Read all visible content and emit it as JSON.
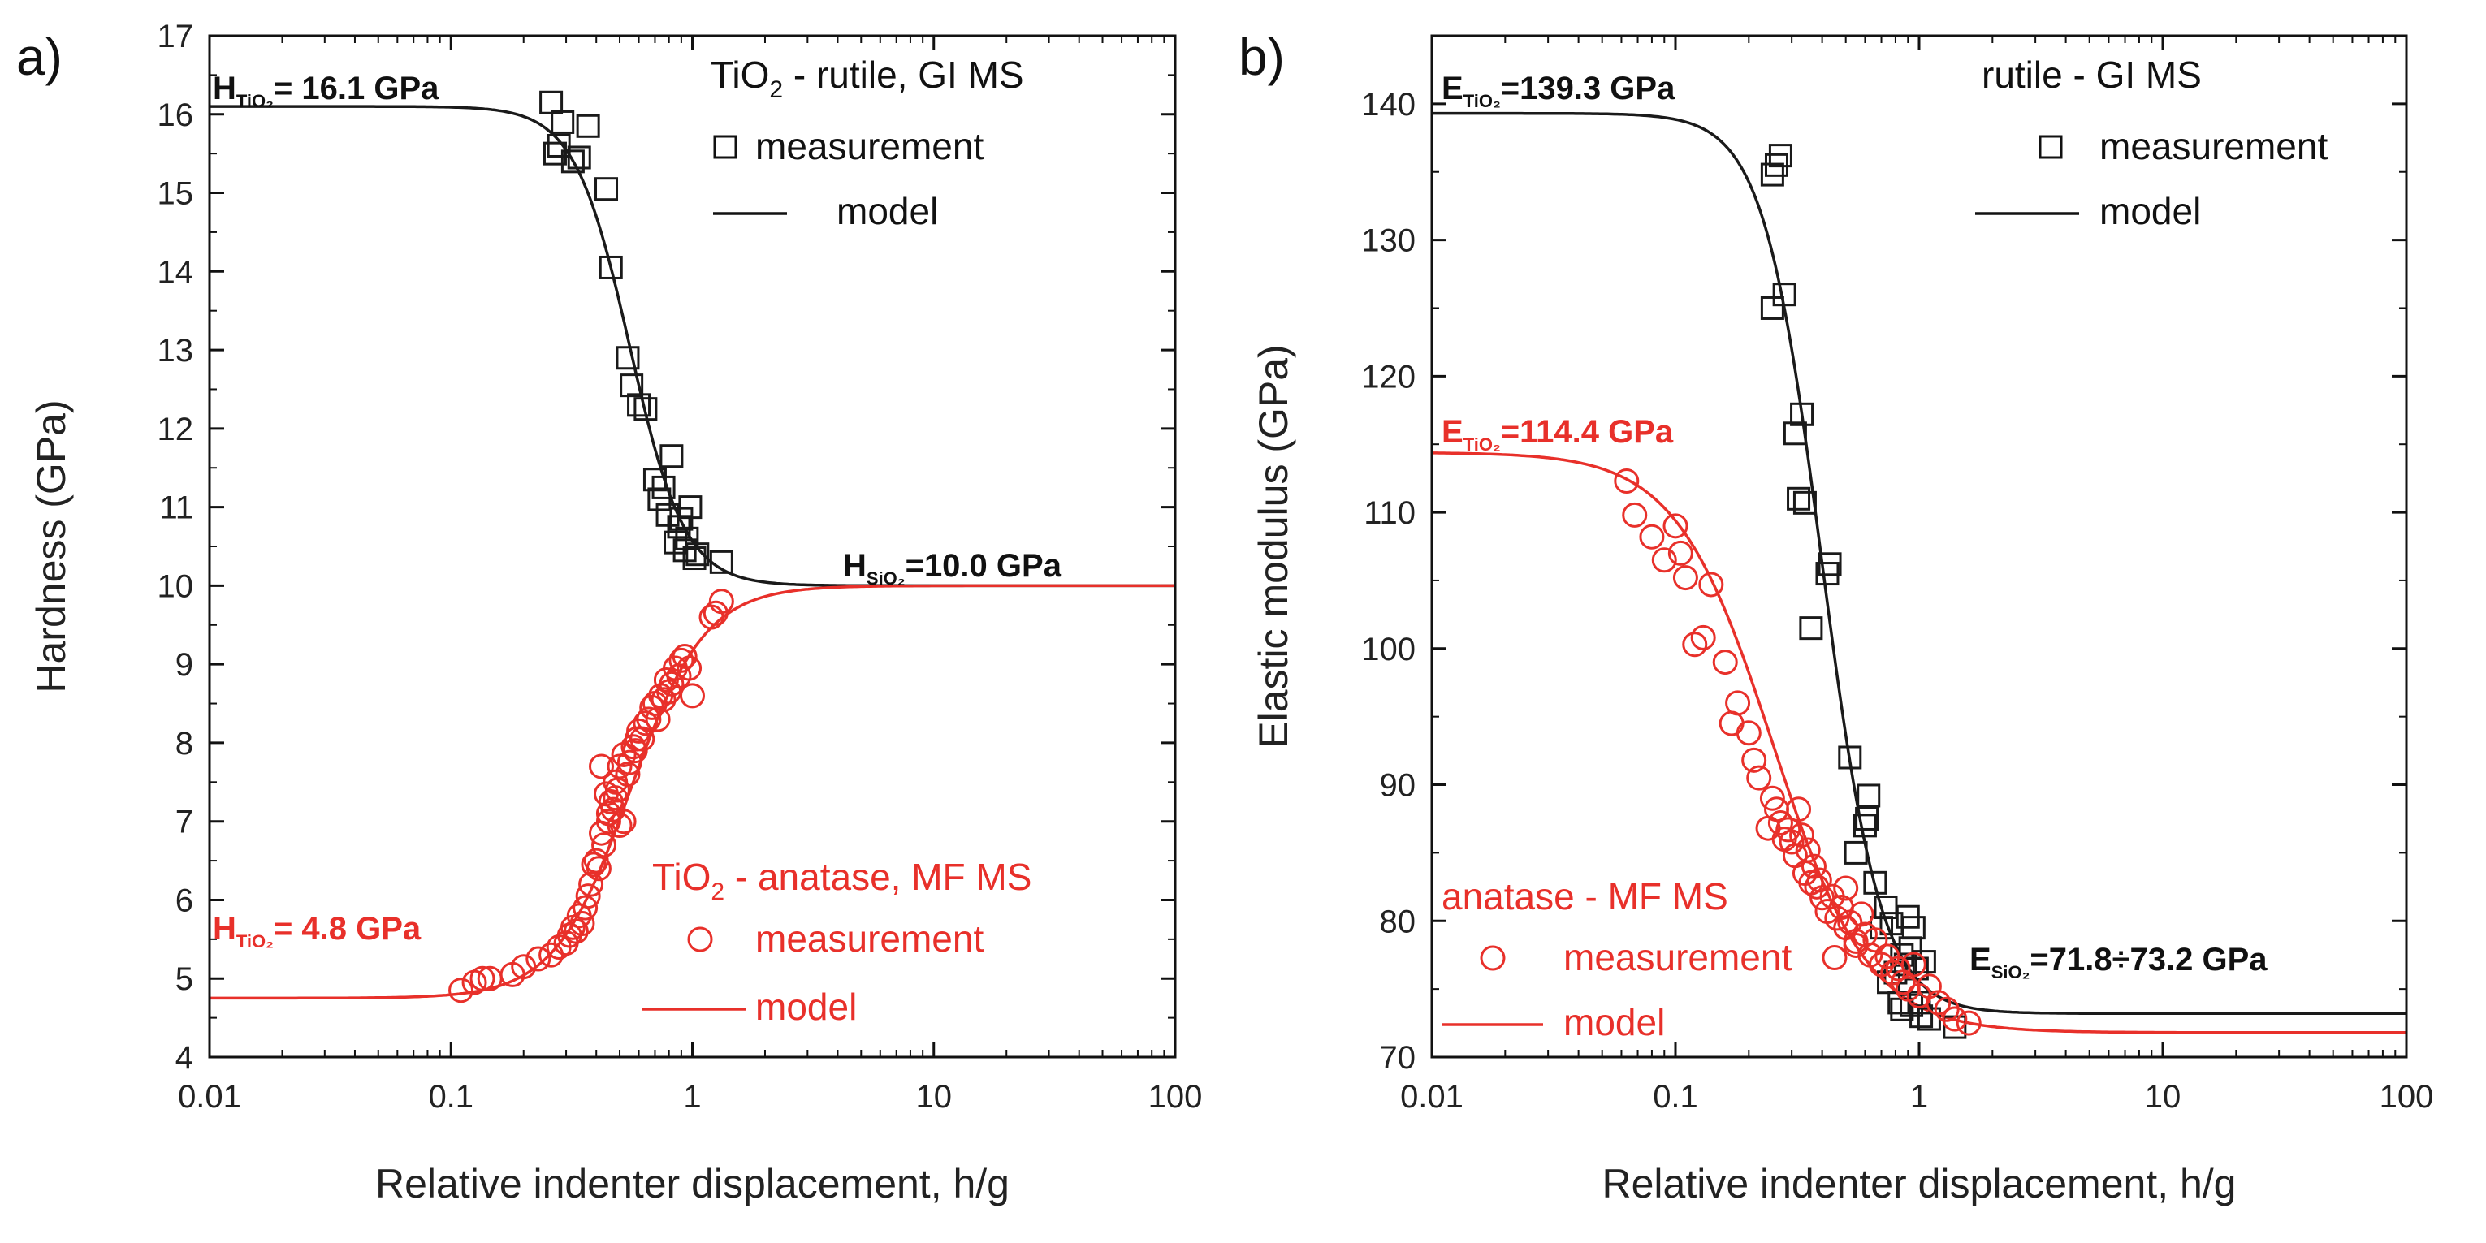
{
  "chart_data": [
    {
      "type": "scatter",
      "panel_label": "a)",
      "xlabel": "Relative indenter displacement, h/g",
      "ylabel": "Hardness (GPa)",
      "xscale": "log",
      "xlim": [
        0.01,
        100
      ],
      "ylim": [
        4,
        17
      ],
      "xticks": [
        "0.01",
        "0.1",
        "1",
        "10",
        "100"
      ],
      "yticks": [
        "4",
        "5",
        "6",
        "7",
        "8",
        "9",
        "10",
        "11",
        "12",
        "13",
        "14",
        "15",
        "16",
        "17"
      ],
      "legend": {
        "rutile_title": "TiO",
        "rutile_sub": "2",
        "rutile_rest": " - rutile, GI MS",
        "anatase_title": "TiO",
        "anatase_sub": "2",
        "anatase_rest": " - anatase, MF MS",
        "measurement": "measurement",
        "model": "model"
      },
      "annotations": {
        "rutile": {
          "sym": "H",
          "sub": "TiO₂",
          "rest": "= 16.1 GPa"
        },
        "substrate": {
          "sym": "H",
          "sub": "SiO₂",
          "rest": "=10.0 GPa"
        },
        "anatase": {
          "sym": "H",
          "sub": "TiO₂",
          "rest": "= 4.8 GPa"
        }
      },
      "series": [
        {
          "name": "TiO2 - rutile, GI MS measurement",
          "marker": "square",
          "color": "#1a1a1a",
          "x": [
            0.26,
            0.27,
            0.29,
            0.28,
            0.32,
            0.34,
            0.37,
            0.44,
            0.46,
            0.54,
            0.56,
            0.6,
            0.64,
            0.7,
            0.73,
            0.76,
            0.82,
            0.85,
            0.88,
            0.9,
            0.95,
            0.98,
            1.02,
            1.05,
            1.32,
            0.79,
            0.93
          ],
          "y": [
            16.15,
            15.5,
            15.9,
            15.6,
            15.4,
            15.45,
            15.85,
            15.05,
            14.05,
            12.9,
            12.55,
            12.3,
            12.25,
            11.35,
            11.1,
            11.25,
            11.65,
            10.55,
            10.75,
            10.85,
            10.6,
            11.0,
            10.35,
            10.4,
            10.3,
            10.9,
            10.45
          ]
        },
        {
          "name": "TiO2 - rutile, GI MS model",
          "kind": "model",
          "color": "#1a1a1a",
          "plateau": 16.1,
          "asymptote": 10.0,
          "x0": 0.55,
          "p": 3.8
        },
        {
          "name": "TiO2 - anatase, MF MS measurement",
          "marker": "circle",
          "color": "#e8302a",
          "x": [
            0.11,
            0.125,
            0.135,
            0.145,
            0.18,
            0.2,
            0.23,
            0.26,
            0.28,
            0.3,
            0.31,
            0.32,
            0.33,
            0.34,
            0.35,
            0.36,
            0.37,
            0.38,
            0.39,
            0.4,
            0.41,
            0.42,
            0.43,
            0.44,
            0.45,
            0.46,
            0.47,
            0.48,
            0.49,
            0.5,
            0.52,
            0.54,
            0.55,
            0.57,
            0.59,
            0.6,
            0.62,
            0.64,
            0.66,
            0.68,
            0.7,
            0.72,
            0.74,
            0.76,
            0.78,
            0.8,
            0.82,
            0.85,
            0.88,
            0.9,
            0.93,
            0.97,
            1.0,
            1.2,
            1.25,
            1.32,
            0.45,
            0.48,
            0.52,
            0.58,
            0.42,
            0.5
          ],
          "y": [
            4.85,
            4.95,
            5.0,
            5.0,
            5.05,
            5.15,
            5.25,
            5.3,
            5.4,
            5.45,
            5.55,
            5.65,
            5.6,
            5.8,
            5.7,
            5.9,
            6.05,
            6.2,
            6.45,
            6.5,
            6.4,
            6.85,
            6.7,
            7.35,
            7.1,
            7.25,
            7.15,
            7.5,
            7.4,
            7.7,
            7.85,
            7.6,
            7.75,
            7.95,
            8.05,
            8.15,
            8.05,
            8.25,
            8.3,
            8.45,
            8.5,
            8.3,
            8.6,
            8.55,
            8.8,
            8.65,
            8.75,
            8.95,
            8.85,
            9.05,
            9.1,
            8.95,
            8.6,
            9.6,
            9.65,
            9.8,
            7.0,
            7.3,
            7.0,
            7.9,
            7.7,
            6.95
          ]
        },
        {
          "name": "TiO2 - anatase, MF MS model",
          "kind": "model",
          "color": "#e8302a",
          "plateau": 4.75,
          "asymptote": 10.0,
          "x0": 0.55,
          "p": 2.8
        }
      ]
    },
    {
      "type": "scatter",
      "panel_label": "b)",
      "xlabel": "Relative indenter displacement, h/g",
      "ylabel": "Elastic modulus (GPa)",
      "xscale": "log",
      "xlim": [
        0.01,
        100
      ],
      "ylim": [
        70,
        145
      ],
      "xticks": [
        "0.01",
        "0.1",
        "1",
        "10",
        "100"
      ],
      "yticks": [
        "70",
        "80",
        "90",
        "100",
        "110",
        "120",
        "130",
        "140"
      ],
      "legend": {
        "rutile_title": "rutile - GI MS",
        "anatase_title": "anatase - MF MS",
        "measurement": "measurement",
        "model": "model"
      },
      "annotations": {
        "rutile": {
          "sym": "E",
          "sub": "TiO₂",
          "rest": "=139.3 GPa"
        },
        "anatase": {
          "sym": "E",
          "sub": "TiO₂",
          "rest": "=114.4 GPa"
        },
        "substrate": {
          "sym": "E",
          "sub": "SiO₂",
          "rest": "=71.8÷73.2 GPa"
        }
      },
      "series": [
        {
          "name": "rutile - GI MS measurement",
          "marker": "square",
          "color": "#1a1a1a",
          "x": [
            0.25,
            0.26,
            0.27,
            0.28,
            0.25,
            0.31,
            0.33,
            0.32,
            0.34,
            0.36,
            0.42,
            0.43,
            0.52,
            0.55,
            0.6,
            0.62,
            0.61,
            0.66,
            0.7,
            0.73,
            0.75,
            0.77,
            0.8,
            0.83,
            0.85,
            0.88,
            0.9,
            0.92,
            0.95,
            0.98,
            1.0,
            1.02,
            1.05,
            1.1,
            1.4,
            0.85,
            0.93
          ],
          "y": [
            134.8,
            135.5,
            136.2,
            126.0,
            125.0,
            115.8,
            117.2,
            111.0,
            110.7,
            101.5,
            105.5,
            106.2,
            92.0,
            85.0,
            87.0,
            89.2,
            87.5,
            82.8,
            79.5,
            81.0,
            75.5,
            79.8,
            76.2,
            74.0,
            73.5,
            76.8,
            80.3,
            78.0,
            79.5,
            76.5,
            74.0,
            73.0,
            77.0,
            72.8,
            72.2,
            77.5,
            73.8
          ]
        },
        {
          "name": "rutile - GI MS model",
          "kind": "model",
          "color": "#1a1a1a",
          "plateau": 139.3,
          "asymptote": 73.2,
          "x0": 0.4,
          "p": 3.6
        },
        {
          "name": "anatase - MF MS measurement",
          "marker": "circle",
          "color": "#e8302a",
          "x": [
            0.063,
            0.068,
            0.08,
            0.09,
            0.1,
            0.105,
            0.11,
            0.12,
            0.13,
            0.14,
            0.16,
            0.17,
            0.18,
            0.2,
            0.21,
            0.22,
            0.24,
            0.25,
            0.26,
            0.27,
            0.28,
            0.29,
            0.3,
            0.31,
            0.32,
            0.33,
            0.34,
            0.35,
            0.36,
            0.37,
            0.38,
            0.39,
            0.4,
            0.42,
            0.44,
            0.46,
            0.48,
            0.5,
            0.52,
            0.55,
            0.58,
            0.6,
            0.63,
            0.66,
            0.7,
            0.74,
            0.78,
            0.82,
            0.86,
            0.9,
            0.95,
            1.0,
            1.1,
            1.2,
            1.3,
            1.4,
            1.6,
            0.45,
            0.5,
            0.55
          ],
          "y": [
            112.3,
            109.8,
            108.2,
            106.5,
            109.0,
            107.0,
            105.2,
            100.3,
            100.8,
            104.7,
            99.0,
            94.5,
            96.0,
            93.8,
            91.8,
            90.5,
            86.8,
            89.0,
            88.2,
            87.2,
            86.0,
            86.7,
            85.8,
            84.8,
            88.2,
            86.3,
            83.5,
            85.2,
            82.8,
            84.0,
            82.5,
            83.0,
            81.7,
            80.7,
            81.8,
            80.2,
            81.0,
            79.5,
            79.9,
            78.5,
            80.5,
            79.0,
            77.5,
            78.6,
            76.8,
            77.4,
            76.2,
            76.5,
            75.5,
            75.0,
            76.8,
            74.5,
            75.2,
            74.0,
            73.5,
            72.8,
            72.5,
            77.3,
            82.4,
            78.2
          ]
        },
        {
          "name": "anatase - MF MS model",
          "kind": "model",
          "color": "#e8302a",
          "plateau": 114.4,
          "asymptote": 71.8,
          "x0": 0.25,
          "p": 2.2
        }
      ]
    }
  ]
}
